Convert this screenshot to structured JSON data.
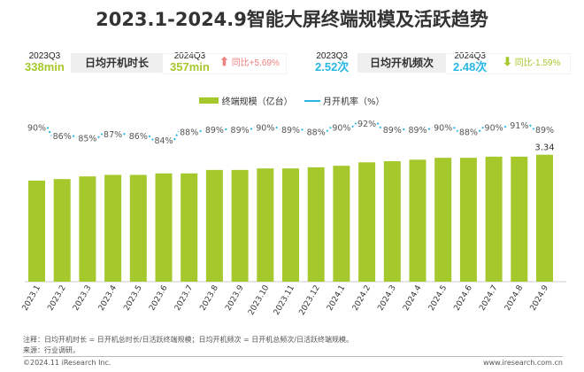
{
  "title": "2023.1-2024.9智能大屏终端规模及活跃趋势",
  "stats": {
    "duration": {
      "prev_label": "2023Q3",
      "prev_value": "338min",
      "name": "日均开机时长",
      "cur_label": "2024Q3",
      "cur_value": "357min",
      "yoy": "同比+5.69%",
      "direction": "up",
      "value_color": "#a5c82d",
      "yoy_color": "#f08080"
    },
    "frequency": {
      "prev_label": "2023Q3",
      "prev_value": "2.52次",
      "name": "日均开机频次",
      "cur_label": "2024Q3",
      "cur_value": "2.48次",
      "yoy": "同比-1.59%",
      "direction": "down",
      "value_color": "#29b8e5",
      "yoy_color": "#a5c82d"
    }
  },
  "chart_data": {
    "type": "bar+line",
    "title": "2023.1-2024.9智能大屏终端规模及活跃趋势",
    "categories": [
      "2023.1",
      "2023.2",
      "2023.3",
      "2023.4",
      "2023.5",
      "2023.6",
      "2023.7",
      "2023.8",
      "2023.9",
      "2023.10",
      "2023.11",
      "2023.12",
      "2024.1",
      "2024.2",
      "2024.3",
      "2024.4",
      "2024.5",
      "2024.6",
      "2024.7",
      "2024.8",
      "2024.9"
    ],
    "series": [
      {
        "name": "终端规模（亿台）",
        "type": "bar",
        "color": "#a5c82d",
        "values": [
          2.66,
          2.7,
          2.77,
          2.81,
          2.81,
          2.85,
          2.85,
          2.94,
          2.94,
          2.98,
          2.98,
          3.01,
          3.05,
          3.14,
          3.17,
          3.21,
          3.26,
          3.26,
          3.29,
          3.29,
          3.34
        ],
        "labels": {
          "20": "3.34"
        }
      },
      {
        "name": "月开机率（%）",
        "type": "line",
        "color": "#29b8e5",
        "values": [
          90,
          86,
          85,
          87,
          86,
          84,
          88,
          89,
          89,
          90,
          89,
          88,
          90,
          92,
          89,
          89,
          90,
          88,
          90,
          91,
          89
        ]
      }
    ],
    "legend": "top-center",
    "grid": false
  },
  "legend": {
    "bar": "终端规模（亿台）",
    "line": "月开机率（%）"
  },
  "footer": {
    "note": "注释：日均开机时长 = 日开机总时长/日活跃终端规模；日均开机频次 = 日开机总频次/日活跃终端规模。",
    "source": "来源：行业调研。",
    "copyright": "©2024.11 iResearch Inc.",
    "website": "www.iresearch.com.cn"
  }
}
